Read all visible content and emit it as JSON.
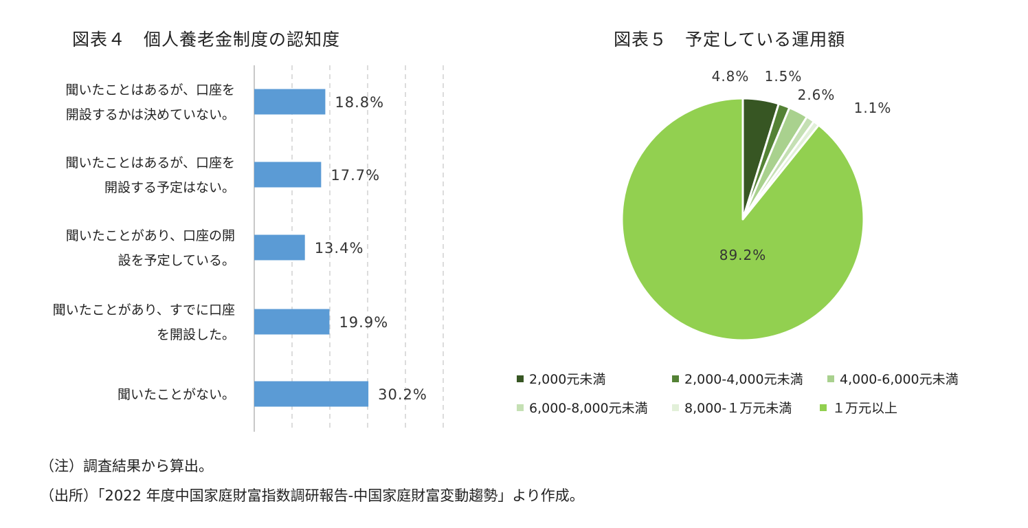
{
  "figure4": {
    "title": "図表４　個人養老金制度の認知度"
  },
  "figure5": {
    "title": "図表５　予定している運用額"
  },
  "notes": {
    "note": "（注）調査結果から算出。",
    "source": "（出所）「2022 年度中国家庭財富指数調研報告-中国家庭財富変動趨勢」より作成。"
  },
  "chart_data": [
    {
      "type": "bar",
      "orientation": "horizontal",
      "categories": [
        [
          "聞いたことはあるが、口座を",
          "開設するかは決めていない。"
        ],
        [
          "聞いたことはあるが、口座を",
          "開設する予定はない。"
        ],
        [
          "聞いたことがあり、口座の開",
          "設を予定している。"
        ],
        [
          "聞いたことがあり、すでに口座",
          "を開設した。"
        ],
        [
          "聞いたことがない。"
        ]
      ],
      "values": [
        18.8,
        17.7,
        13.4,
        19.9,
        30.2
      ],
      "value_labels": [
        "18.8%",
        "17.7%",
        "13.4%",
        "19.9%",
        "30.2%"
      ],
      "xlim": [
        0,
        50
      ],
      "grid": "vertical dashed",
      "colors": {
        "bar": "#5b9bd5",
        "grid": "#d0d0d0",
        "axis": "#c8c8c8"
      }
    },
    {
      "type": "pie",
      "slices": [
        {
          "label": "2,000元未満",
          "value": 4.8,
          "value_label": "4.8%",
          "color": "#375623"
        },
        {
          "label": "2,000-4,000元未満",
          "value": 1.5,
          "value_label": "1.5%",
          "color": "#548235"
        },
        {
          "label": "4,000-6,000元未満",
          "value": 2.6,
          "value_label": "2.6%",
          "color": "#a9d18e"
        },
        {
          "label": "6,000-8,000元未満",
          "value": 1.1,
          "value_label": "1.1%",
          "color": "#c5e0b4"
        },
        {
          "label": "8,000-１万元未満",
          "value": 0.8,
          "value_label": "",
          "color": "#e2f0d9"
        },
        {
          "label": "１万元以上",
          "value": 89.2,
          "value_label": "89.2%",
          "color": "#92d050"
        }
      ],
      "legend": [
        [
          "2,000元未満",
          "2,000-4,000元未満",
          "4,000-6,000元未満"
        ],
        [
          "6,000-8,000元未満",
          "8,000-１万元未満",
          "１万元以上"
        ]
      ],
      "legend_position": "bottom",
      "start_angle": "12 o'clock, clockwise"
    }
  ]
}
